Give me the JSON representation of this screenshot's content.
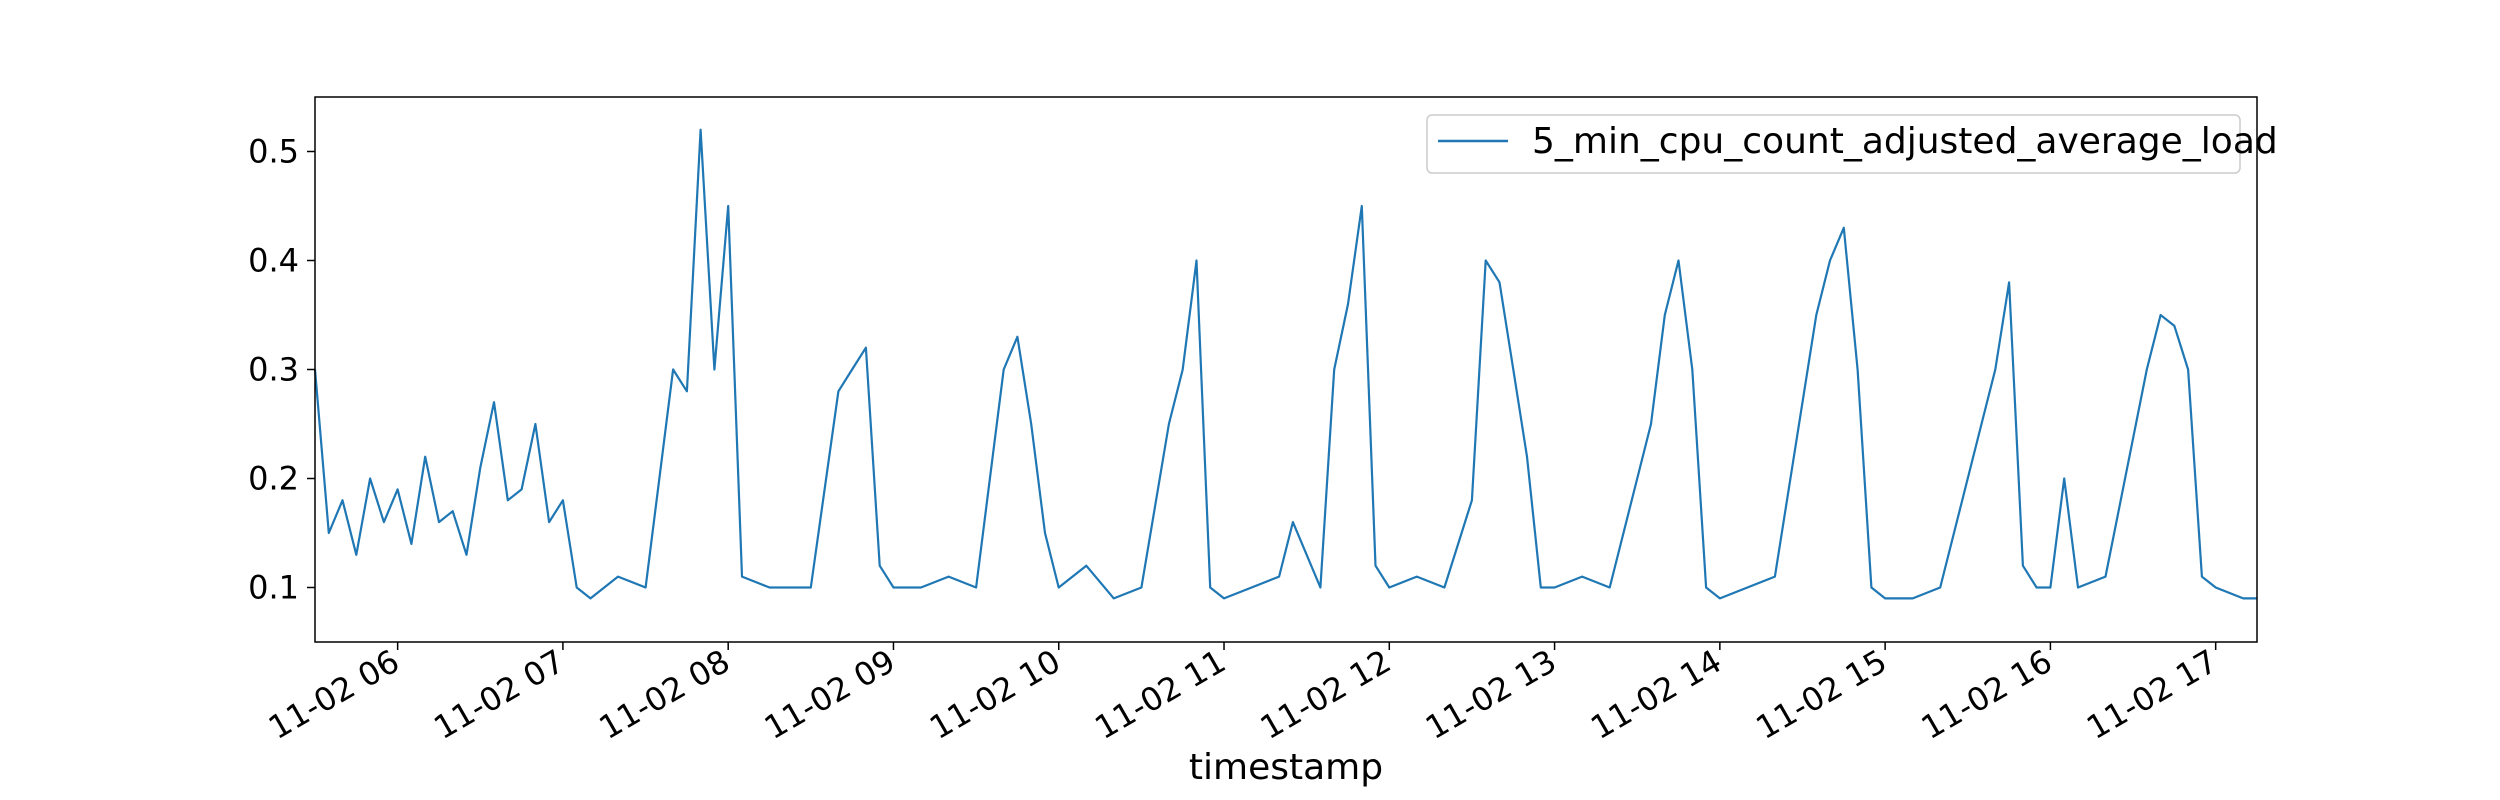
{
  "chart_data": {
    "type": "line",
    "title": "",
    "xlabel": "timestamp",
    "ylabel": "",
    "xlim": [
      "11-02 05:30",
      "11-02 17:15"
    ],
    "ylim": [
      0.05,
      0.55
    ],
    "y_ticks": [
      "0.1",
      "0.2",
      "0.3",
      "0.4",
      "0.5"
    ],
    "x_ticks": [
      "11-02 06",
      "11-02 07",
      "11-02 08",
      "11-02 09",
      "11-02 10",
      "11-02 11",
      "11-02 12",
      "11-02 13",
      "11-02 14",
      "11-02 15",
      "11-02 16",
      "11-02 17"
    ],
    "legend_position": "top-right",
    "grid": false,
    "series": [
      {
        "name": "5_min_cpu_count_adjusted_average_load",
        "color": "#1f77b4",
        "x": [
          "11-02 05:30",
          "11-02 05:35",
          "11-02 05:40",
          "11-02 05:45",
          "11-02 05:50",
          "11-02 05:55",
          "11-02 06:00",
          "11-02 06:05",
          "11-02 06:10",
          "11-02 06:15",
          "11-02 06:20",
          "11-02 06:25",
          "11-02 06:30",
          "11-02 06:35",
          "11-02 06:40",
          "11-02 06:45",
          "11-02 06:50",
          "11-02 06:55",
          "11-02 07:00",
          "11-02 07:05",
          "11-02 07:10",
          "11-02 07:20",
          "11-02 07:30",
          "11-02 07:40",
          "11-02 07:45",
          "11-02 07:50",
          "11-02 07:55",
          "11-02 08:00",
          "11-02 08:05",
          "11-02 08:15",
          "11-02 08:30",
          "11-02 08:40",
          "11-02 08:45",
          "11-02 08:50",
          "11-02 08:55",
          "11-02 09:00",
          "11-02 09:10",
          "11-02 09:20",
          "11-02 09:30",
          "11-02 09:40",
          "11-02 09:45",
          "11-02 09:50",
          "11-02 09:55",
          "11-02 10:00",
          "11-02 10:10",
          "11-02 10:20",
          "11-02 10:30",
          "11-02 10:40",
          "11-02 10:45",
          "11-02 10:50",
          "11-02 10:55",
          "11-02 11:00",
          "11-02 11:10",
          "11-02 11:20",
          "11-02 11:25",
          "11-02 11:35",
          "11-02 11:40",
          "11-02 11:45",
          "11-02 11:50",
          "11-02 11:55",
          "11-02 12:00",
          "11-02 12:10",
          "11-02 12:20",
          "11-02 12:30",
          "11-02 12:35",
          "11-02 12:40",
          "11-02 12:45",
          "11-02 12:50",
          "11-02 12:55",
          "11-02 13:00",
          "11-02 13:10",
          "11-02 13:20",
          "11-02 13:35",
          "11-02 13:40",
          "11-02 13:45",
          "11-02 13:50",
          "11-02 13:55",
          "11-02 14:00",
          "11-02 14:10",
          "11-02 14:20",
          "11-02 14:35",
          "11-02 14:40",
          "11-02 14:45",
          "11-02 14:50",
          "11-02 14:55",
          "11-02 15:00",
          "11-02 15:10",
          "11-02 15:20",
          "11-02 15:35",
          "11-02 15:40",
          "11-02 15:45",
          "11-02 15:50",
          "11-02 15:55",
          "11-02 16:00",
          "11-02 16:05",
          "11-02 16:10",
          "11-02 16:20",
          "11-02 16:35",
          "11-02 16:40",
          "11-02 16:45",
          "11-02 16:50",
          "11-02 16:55",
          "11-02 17:00",
          "11-02 17:10",
          "11-02 17:15"
        ],
        "y": [
          0.3,
          0.15,
          0.18,
          0.13,
          0.2,
          0.16,
          0.19,
          0.14,
          0.22,
          0.16,
          0.17,
          0.13,
          0.21,
          0.27,
          0.18,
          0.19,
          0.25,
          0.16,
          0.18,
          0.1,
          0.09,
          0.11,
          0.1,
          0.3,
          0.28,
          0.52,
          0.3,
          0.45,
          0.11,
          0.1,
          0.1,
          0.28,
          0.3,
          0.32,
          0.12,
          0.1,
          0.1,
          0.11,
          0.1,
          0.3,
          0.33,
          0.25,
          0.15,
          0.1,
          0.12,
          0.09,
          0.1,
          0.25,
          0.3,
          0.4,
          0.1,
          0.09,
          0.1,
          0.11,
          0.16,
          0.1,
          0.3,
          0.36,
          0.45,
          0.12,
          0.1,
          0.11,
          0.1,
          0.18,
          0.4,
          0.38,
          0.3,
          0.22,
          0.1,
          0.1,
          0.11,
          0.1,
          0.25,
          0.35,
          0.4,
          0.3,
          0.1,
          0.09,
          0.1,
          0.11,
          0.35,
          0.4,
          0.43,
          0.3,
          0.1,
          0.09,
          0.09,
          0.1,
          0.25,
          0.3,
          0.38,
          0.12,
          0.1,
          0.1,
          0.2,
          0.1,
          0.11,
          0.3,
          0.35,
          0.34,
          0.3,
          0.11,
          0.1,
          0.09,
          0.09
        ]
      }
    ]
  }
}
